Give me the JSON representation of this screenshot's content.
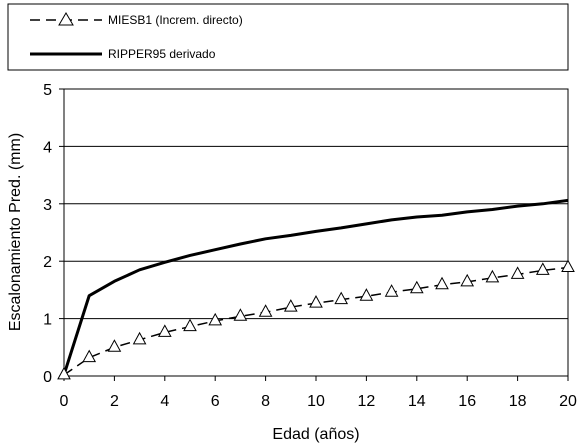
{
  "chart_data": {
    "type": "line",
    "xlabel": "Edad (años)",
    "ylabel": "Escalonamiento Pred. (mm)",
    "xlim": [
      0,
      20
    ],
    "ylim": [
      0,
      5
    ],
    "x_ticks": [
      "0",
      "2",
      "4",
      "6",
      "8",
      "10",
      "12",
      "14",
      "16",
      "18",
      "20"
    ],
    "y_ticks": [
      "0",
      "1",
      "2",
      "3",
      "4",
      "5"
    ],
    "grid": "horizontal",
    "legend_position": "top",
    "series": [
      {
        "name": "MIESB1 (Increm. directo)",
        "style": "dashed-triangle",
        "color": "#000000",
        "x": [
          0,
          1,
          2,
          3,
          4,
          5,
          6,
          7,
          8,
          9,
          10,
          11,
          12,
          13,
          14,
          15,
          16,
          17,
          18,
          19,
          20
        ],
        "values": [
          0.02,
          0.32,
          0.5,
          0.63,
          0.76,
          0.86,
          0.96,
          1.04,
          1.11,
          1.2,
          1.27,
          1.33,
          1.39,
          1.46,
          1.52,
          1.59,
          1.64,
          1.71,
          1.77,
          1.84,
          1.89
        ]
      },
      {
        "name": "RIPPER95 derivado",
        "style": "solid",
        "color": "#000000",
        "x": [
          0,
          1,
          2,
          3,
          4,
          5,
          6,
          7,
          8,
          9,
          10,
          11,
          12,
          13,
          14,
          15,
          16,
          17,
          18,
          19,
          20
        ],
        "values": [
          0.02,
          1.4,
          1.65,
          1.85,
          1.98,
          2.1,
          2.2,
          2.3,
          2.39,
          2.45,
          2.52,
          2.58,
          2.65,
          2.72,
          2.77,
          2.8,
          2.86,
          2.9,
          2.96,
          3.0,
          3.06
        ]
      }
    ]
  }
}
